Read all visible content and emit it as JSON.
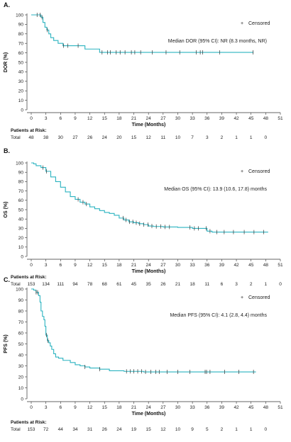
{
  "chart_data": [
    {
      "type": "line",
      "panel_label": "A.",
      "ylabel": "DOR (%)",
      "xlabel": "Time (Months)",
      "xlim": [
        0,
        51
      ],
      "ylim": [
        0,
        100
      ],
      "xticks": [
        0,
        3,
        6,
        9,
        12,
        15,
        18,
        21,
        24,
        27,
        30,
        33,
        36,
        39,
        42,
        45,
        48,
        51
      ],
      "yticks": [
        0,
        10,
        20,
        30,
        40,
        50,
        60,
        70,
        80,
        90,
        100
      ],
      "legend": "Censored",
      "legend_symbol": "+",
      "annotation": "Median DOR (95% CI): NR (8.3 months, NR)",
      "color": "#2bb3c0",
      "series": [
        {
          "x": [
            0,
            2,
            2,
            2.4,
            2.4,
            2.8,
            2.8,
            3.2,
            3.2,
            3.6,
            3.6,
            4,
            4,
            4.6,
            4.6,
            5.5,
            5.5,
            6.5,
            6.5,
            11,
            11,
            14,
            14,
            45.5
          ],
          "y": [
            100,
            100,
            97.5,
            97.5,
            92,
            92,
            87,
            87,
            84,
            84,
            80,
            80,
            76,
            76,
            73,
            73,
            70,
            70,
            67.5,
            67.5,
            64,
            64,
            60.5,
            60.5
          ]
        }
      ],
      "censored_x": [
        1.2,
        1.8,
        2.2,
        3.3,
        6.6,
        7.5,
        9.6,
        14.5,
        15.6,
        16.2,
        17.4,
        18.2,
        19.2,
        20.5,
        21.2,
        22.4,
        24.8,
        27.6,
        30.4,
        33.8,
        34.6,
        35.1,
        38.6,
        45.4
      ],
      "risk_table": {
        "title": "Patients at Risk:",
        "row_label": "Total",
        "values": [
          "48",
          "38",
          "30",
          "27",
          "26",
          "24",
          "20",
          "15",
          "12",
          "11",
          "10",
          "7",
          "3",
          "2",
          "1",
          "1",
          "0"
        ]
      }
    },
    {
      "type": "line",
      "panel_label": "B.",
      "ylabel": "OS (%)",
      "xlabel": "Time (Months)",
      "xlim": [
        0,
        51
      ],
      "ylim": [
        0,
        100
      ],
      "xticks": [
        0,
        3,
        6,
        9,
        12,
        15,
        18,
        21,
        24,
        27,
        30,
        33,
        36,
        39,
        42,
        45,
        48,
        51
      ],
      "yticks": [
        0,
        10,
        20,
        30,
        40,
        50,
        60,
        70,
        80,
        90,
        100
      ],
      "legend": "Censored",
      "legend_symbol": "+",
      "annotation": "Median OS (95% CI): 13.9 (10.6, 17.8) months",
      "color": "#2bb3c0",
      "series": [
        {
          "x": [
            0,
            0.5,
            1,
            2,
            3,
            4,
            5,
            6,
            7,
            8,
            9,
            10,
            11,
            12,
            13,
            14,
            15,
            16,
            17,
            18,
            19,
            20,
            21,
            22,
            23,
            24,
            25,
            27,
            30,
            33,
            36,
            37,
            48.5
          ],
          "y": [
            100,
            99,
            97,
            95,
            91,
            85,
            80,
            74,
            69,
            64,
            61,
            58,
            56,
            53,
            51,
            49,
            47,
            46,
            44,
            41,
            39,
            37,
            36,
            35,
            34,
            32.5,
            32,
            31.5,
            31,
            30,
            27,
            26,
            26
          ]
        }
      ],
      "censored_x": [
        2.4,
        3.1,
        9.6,
        10.6,
        11.3,
        18.8,
        19.4,
        20.1,
        20.8,
        21.5,
        22.2,
        23.0,
        23.9,
        24.7,
        25.6,
        26.5,
        27.4,
        28.3,
        32.5,
        33.4,
        34.2,
        35.8,
        36.6,
        38.0,
        39.5,
        41.4,
        43.6,
        45.6,
        47.6
      ],
      "risk_table": {
        "title": "Patients at Risk:",
        "row_label": "Total",
        "values": [
          "153",
          "134",
          "111",
          "94",
          "78",
          "68",
          "61",
          "45",
          "35",
          "26",
          "21",
          "18",
          "11",
          "6",
          "3",
          "2",
          "1",
          "0"
        ]
      }
    },
    {
      "type": "line",
      "panel_label": "C.",
      "ylabel": "PFS (%)",
      "xlabel": "Time (Months)",
      "xlim": [
        0,
        51
      ],
      "ylim": [
        0,
        100
      ],
      "xticks": [
        0,
        3,
        6,
        9,
        12,
        15,
        18,
        21,
        24,
        27,
        30,
        33,
        36,
        39,
        42,
        45,
        48,
        51
      ],
      "yticks": [
        0,
        10,
        20,
        30,
        40,
        50,
        60,
        70,
        80,
        90,
        100
      ],
      "legend": "Censored",
      "legend_symbol": "+",
      "annotation": "Median PFS (95% CI): 4.1 (2.8, 4.4) months",
      "color": "#2bb3c0",
      "series": [
        {
          "x": [
            0,
            0.5,
            1,
            1.5,
            1.8,
            2,
            2.3,
            2.6,
            2.8,
            3,
            3.3,
            3.6,
            3.9,
            4.2,
            4.6,
            5,
            5.6,
            6.5,
            8,
            9,
            10,
            11,
            12,
            14,
            16,
            19,
            23,
            46
          ],
          "y": [
            100,
            99,
            97,
            94,
            88,
            80,
            75,
            72,
            66,
            58,
            53,
            51,
            48,
            45,
            41,
            38,
            37,
            35,
            33,
            31,
            30,
            29,
            28,
            27,
            25.5,
            25,
            24.5,
            24.5
          ]
        }
      ],
      "censored_x": [
        1.0,
        1.3,
        3.1,
        3.4,
        11.0,
        14.0,
        19.5,
        20.3,
        21.0,
        21.8,
        22.6,
        23.4,
        24.5,
        25.5,
        26.2,
        27.8,
        30.0,
        32.5,
        35.6,
        35.9,
        36.6,
        39.6,
        42.5,
        45.5
      ],
      "risk_table": {
        "title": "Patients at Risk:",
        "row_label": "Total",
        "values": [
          "153",
          "72",
          "44",
          "34",
          "31",
          "26",
          "24",
          "19",
          "15",
          "12",
          "10",
          "9",
          "5",
          "2",
          "1",
          "1",
          "0"
        ]
      }
    }
  ]
}
